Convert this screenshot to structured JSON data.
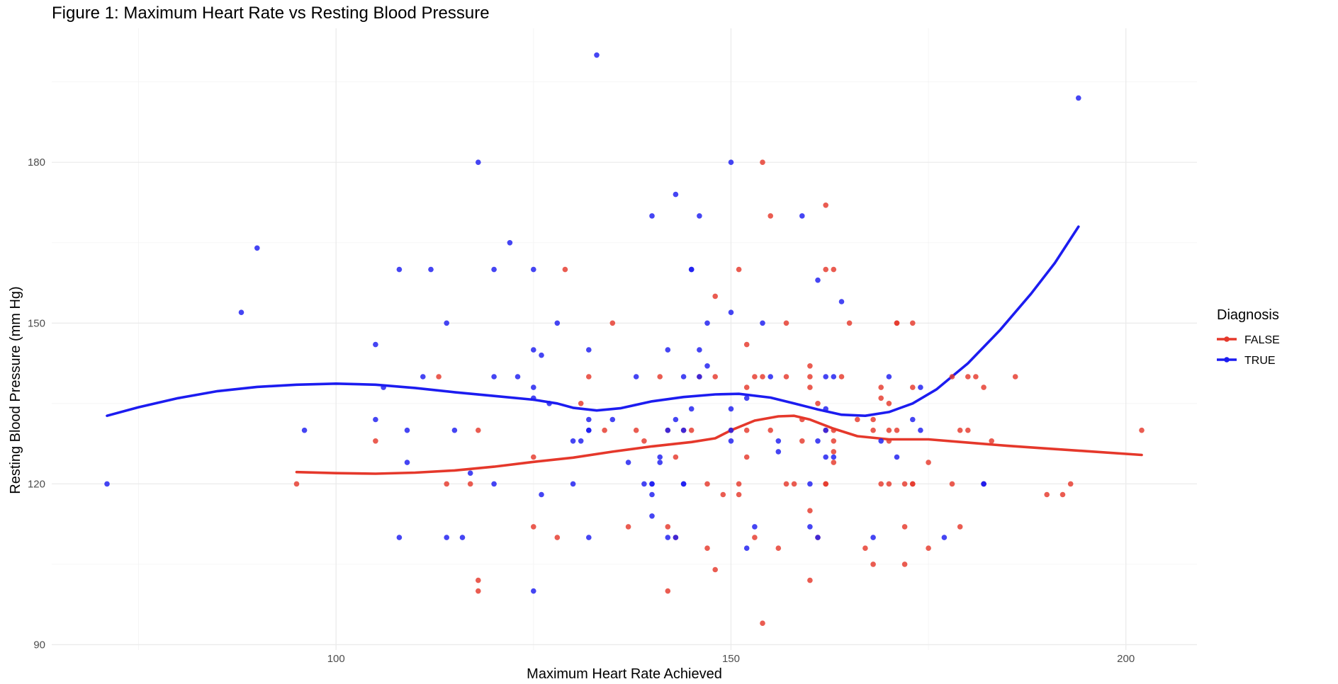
{
  "chart_data": {
    "type": "scatter",
    "title": "Figure 1: Maximum Heart Rate vs Resting Blood Pressure",
    "xlabel": "Maximum Heart Rate Achieved",
    "ylabel": "Resting Blood Pressure (mm Hg)",
    "xlim": [
      64,
      209
    ],
    "ylim": [
      89,
      205
    ],
    "xticks": [
      100,
      150,
      200
    ],
    "yticks": [
      90,
      120,
      150,
      180
    ],
    "grid": true,
    "legend": {
      "title": "Diagnosis",
      "position": "right"
    },
    "series": [
      {
        "name": "FALSE",
        "color": "#e5382b",
        "points": [
          [
            95,
            120
          ],
          [
            105,
            128
          ],
          [
            113,
            140
          ],
          [
            114,
            120
          ],
          [
            117,
            120
          ],
          [
            118,
            102
          ],
          [
            118,
            100
          ],
          [
            118,
            130
          ],
          [
            125,
            112
          ],
          [
            125,
            125
          ],
          [
            128,
            110
          ],
          [
            129,
            160
          ],
          [
            131,
            135
          ],
          [
            132,
            140
          ],
          [
            134,
            130
          ],
          [
            135,
            150
          ],
          [
            137,
            112
          ],
          [
            138,
            130
          ],
          [
            139,
            128
          ],
          [
            141,
            140
          ],
          [
            142,
            130
          ],
          [
            142,
            112
          ],
          [
            142,
            100
          ],
          [
            143,
            110
          ],
          [
            143,
            125
          ],
          [
            144,
            130
          ],
          [
            145,
            130
          ],
          [
            146,
            140
          ],
          [
            147,
            120
          ],
          [
            147,
            108
          ],
          [
            148,
            155
          ],
          [
            148,
            104
          ],
          [
            148,
            140
          ],
          [
            149,
            118
          ],
          [
            150,
            130
          ],
          [
            151,
            120
          ],
          [
            151,
            118
          ],
          [
            151,
            160
          ],
          [
            152,
            138
          ],
          [
            152,
            146
          ],
          [
            152,
            125
          ],
          [
            152,
            130
          ],
          [
            153,
            110
          ],
          [
            153,
            140
          ],
          [
            154,
            180
          ],
          [
            154,
            94
          ],
          [
            154,
            140
          ],
          [
            155,
            170
          ],
          [
            155,
            130
          ],
          [
            156,
            108
          ],
          [
            157,
            140
          ],
          [
            157,
            120
          ],
          [
            157,
            150
          ],
          [
            158,
            120
          ],
          [
            159,
            132
          ],
          [
            159,
            128
          ],
          [
            160,
            102
          ],
          [
            160,
            142
          ],
          [
            160,
            140
          ],
          [
            160,
            138
          ],
          [
            160,
            115
          ],
          [
            161,
            110
          ],
          [
            161,
            135
          ],
          [
            162,
            172
          ],
          [
            162,
            160
          ],
          [
            162,
            130
          ],
          [
            162,
            120
          ],
          [
            162,
            120
          ],
          [
            163,
            160
          ],
          [
            163,
            130
          ],
          [
            163,
            128
          ],
          [
            163,
            124
          ],
          [
            163,
            126
          ],
          [
            164,
            140
          ],
          [
            165,
            150
          ],
          [
            166,
            132
          ],
          [
            167,
            108
          ],
          [
            168,
            105
          ],
          [
            168,
            130
          ],
          [
            168,
            132
          ],
          [
            169,
            120
          ],
          [
            169,
            136
          ],
          [
            169,
            138
          ],
          [
            170,
            128
          ],
          [
            170,
            130
          ],
          [
            170,
            135
          ],
          [
            170,
            120
          ],
          [
            171,
            150
          ],
          [
            171,
            150
          ],
          [
            171,
            130
          ],
          [
            172,
            120
          ],
          [
            172,
            112
          ],
          [
            172,
            105
          ],
          [
            173,
            138
          ],
          [
            173,
            150
          ],
          [
            173,
            120
          ],
          [
            173,
            120
          ],
          [
            175,
            108
          ],
          [
            175,
            124
          ],
          [
            178,
            120
          ],
          [
            178,
            140
          ],
          [
            179,
            112
          ],
          [
            179,
            130
          ],
          [
            180,
            140
          ],
          [
            180,
            130
          ],
          [
            181,
            140
          ],
          [
            182,
            138
          ],
          [
            182,
            120
          ],
          [
            183,
            128
          ],
          [
            186,
            140
          ],
          [
            190,
            118
          ],
          [
            192,
            118
          ],
          [
            193,
            120
          ],
          [
            202,
            130
          ]
        ],
        "smooth": [
          [
            95,
            122.2
          ],
          [
            100,
            122
          ],
          [
            105,
            121.9
          ],
          [
            110,
            122.1
          ],
          [
            115,
            122.5
          ],
          [
            120,
            123.2
          ],
          [
            125,
            124.1
          ],
          [
            130,
            124.9
          ],
          [
            135,
            126
          ],
          [
            140,
            127
          ],
          [
            145,
            127.8
          ],
          [
            148,
            128.5
          ],
          [
            150,
            130
          ],
          [
            153,
            131.8
          ],
          [
            156,
            132.6
          ],
          [
            158,
            132.7
          ],
          [
            160,
            132
          ],
          [
            163,
            130.3
          ],
          [
            166,
            128.9
          ],
          [
            170,
            128.3
          ],
          [
            175,
            128.3
          ],
          [
            180,
            127.7
          ],
          [
            185,
            127.1
          ],
          [
            190,
            126.6
          ],
          [
            195,
            126.1
          ],
          [
            202,
            125.4
          ]
        ]
      },
      {
        "name": "TRUE",
        "color": "#1c1cf0",
        "points": [
          [
            71,
            120
          ],
          [
            88,
            152
          ],
          [
            90,
            164
          ],
          [
            96,
            130
          ],
          [
            105,
            146
          ],
          [
            105,
            132
          ],
          [
            106,
            138
          ],
          [
            108,
            110
          ],
          [
            108,
            160
          ],
          [
            109,
            130
          ],
          [
            109,
            124
          ],
          [
            111,
            140
          ],
          [
            112,
            160
          ],
          [
            114,
            150
          ],
          [
            114,
            110
          ],
          [
            115,
            130
          ],
          [
            116,
            110
          ],
          [
            117,
            122
          ],
          [
            118,
            180
          ],
          [
            120,
            160
          ],
          [
            120,
            140
          ],
          [
            120,
            120
          ],
          [
            122,
            165
          ],
          [
            123,
            140
          ],
          [
            125,
            160
          ],
          [
            125,
            145
          ],
          [
            125,
            138
          ],
          [
            125,
            136
          ],
          [
            125,
            100
          ],
          [
            126,
            144
          ],
          [
            126,
            118
          ],
          [
            127,
            135
          ],
          [
            128,
            150
          ],
          [
            130,
            120
          ],
          [
            130,
            128
          ],
          [
            131,
            128
          ],
          [
            132,
            130
          ],
          [
            132,
            145
          ],
          [
            132,
            132
          ],
          [
            132,
            110
          ],
          [
            132,
            130
          ],
          [
            133,
            200
          ],
          [
            135,
            132
          ],
          [
            137,
            124
          ],
          [
            138,
            140
          ],
          [
            139,
            120
          ],
          [
            140,
            120
          ],
          [
            140,
            118
          ],
          [
            140,
            114
          ],
          [
            140,
            120
          ],
          [
            140,
            170
          ],
          [
            141,
            125
          ],
          [
            141,
            124
          ],
          [
            142,
            145
          ],
          [
            142,
            110
          ],
          [
            142,
            130
          ],
          [
            143,
            174
          ],
          [
            143,
            132
          ],
          [
            143,
            110
          ],
          [
            144,
            130
          ],
          [
            144,
            140
          ],
          [
            144,
            120
          ],
          [
            144,
            120
          ],
          [
            145,
            134
          ],
          [
            145,
            160
          ],
          [
            145,
            160
          ],
          [
            146,
            140
          ],
          [
            146,
            145
          ],
          [
            146,
            170
          ],
          [
            147,
            142
          ],
          [
            147,
            150
          ],
          [
            150,
            180
          ],
          [
            150,
            152
          ],
          [
            150,
            130
          ],
          [
            150,
            134
          ],
          [
            150,
            128
          ],
          [
            152,
            136
          ],
          [
            152,
            108
          ],
          [
            153,
            112
          ],
          [
            154,
            150
          ],
          [
            155,
            140
          ],
          [
            156,
            126
          ],
          [
            156,
            128
          ],
          [
            159,
            170
          ],
          [
            160,
            112
          ],
          [
            160,
            120
          ],
          [
            161,
            158
          ],
          [
            161,
            128
          ],
          [
            161,
            110
          ],
          [
            162,
            140
          ],
          [
            162,
            125
          ],
          [
            162,
            130
          ],
          [
            162,
            134
          ],
          [
            163,
            140
          ],
          [
            163,
            125
          ],
          [
            164,
            154
          ],
          [
            168,
            110
          ],
          [
            169,
            128
          ],
          [
            170,
            140
          ],
          [
            171,
            125
          ],
          [
            173,
            132
          ],
          [
            174,
            138
          ],
          [
            174,
            130
          ],
          [
            177,
            110
          ],
          [
            182,
            120
          ],
          [
            182,
            120
          ],
          [
            194,
            192
          ]
        ],
        "smooth": [
          [
            71,
            132.7
          ],
          [
            75,
            134.3
          ],
          [
            80,
            136
          ],
          [
            85,
            137.3
          ],
          [
            90,
            138.1
          ],
          [
            95,
            138.5
          ],
          [
            100,
            138.7
          ],
          [
            105,
            138.5
          ],
          [
            110,
            137.9
          ],
          [
            115,
            137.1
          ],
          [
            120,
            136.4
          ],
          [
            125,
            135.7
          ],
          [
            128,
            135
          ],
          [
            130,
            134.2
          ],
          [
            133,
            133.7
          ],
          [
            136,
            134.1
          ],
          [
            140,
            135.4
          ],
          [
            144,
            136.2
          ],
          [
            148,
            136.7
          ],
          [
            151,
            136.8
          ],
          [
            155,
            136.1
          ],
          [
            158,
            135
          ],
          [
            161,
            133.9
          ],
          [
            164,
            132.9
          ],
          [
            167,
            132.7
          ],
          [
            170,
            133.4
          ],
          [
            173,
            135
          ],
          [
            176,
            137.6
          ],
          [
            180,
            142.5
          ],
          [
            184,
            148.6
          ],
          [
            188,
            155.5
          ],
          [
            191,
            161.2
          ],
          [
            194,
            168
          ]
        ]
      }
    ]
  }
}
